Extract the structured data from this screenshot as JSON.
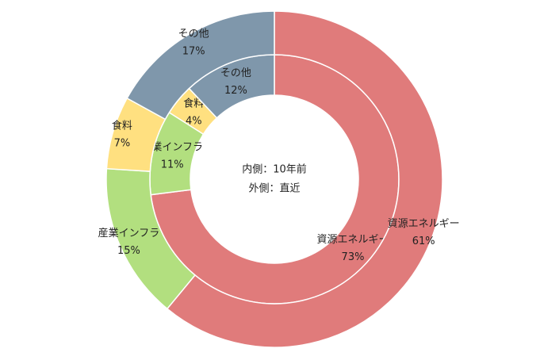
{
  "chart_data": {
    "type": "donut",
    "annotations": [
      "内側：10年前",
      "外側：直近"
    ],
    "series": [
      {
        "categories": [
          "資源エネルギー",
          "産業インフラ",
          "食料",
          "その他"
        ],
        "values": [
          73,
          11,
          4,
          12
        ],
        "value_labels": [
          "73%",
          "11%",
          "4%",
          "12%"
        ],
        "colors": [
          "#e07b7b",
          "#b2df7f",
          "#ffe080",
          "#7f97ab"
        ]
      },
      {
        "categories": [
          "資源エネルギー",
          "産業インフラ",
          "食料",
          "その他"
        ],
        "values": [
          61,
          15,
          7,
          17
        ],
        "value_labels": [
          "61%",
          "15%",
          "7%",
          "17%"
        ],
        "colors": [
          "#e07b7b",
          "#b2df7f",
          "#ffe080",
          "#7f97ab"
        ]
      }
    ]
  }
}
